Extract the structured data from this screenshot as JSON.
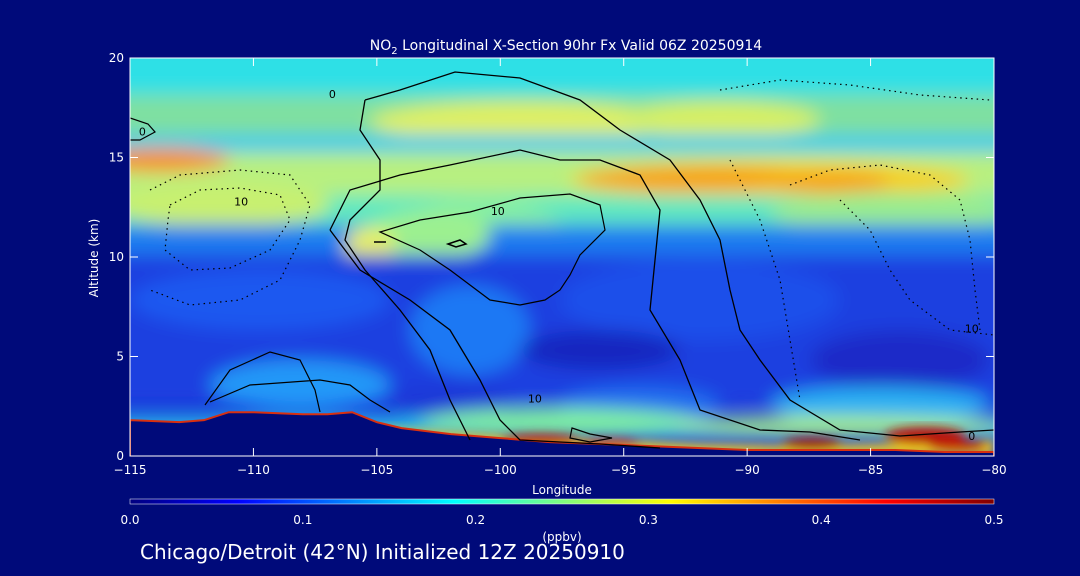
{
  "chart_data": {
    "type": "heatmap",
    "title_prefix": "NO",
    "title_subscript": "2",
    "title_rest": " Longitudinal X-Section 90hr  Fx Valid 06Z 20250914",
    "xlabel": "Longitude",
    "ylabel": "Altitude (km)",
    "xlim": [
      -115,
      -80
    ],
    "ylim": [
      0,
      20
    ],
    "x_ticks": [
      -115,
      -110,
      -105,
      -100,
      -95,
      -90,
      -85,
      -80
    ],
    "x_tick_labels": [
      "−115",
      "−110",
      "−105",
      "−100",
      "−95",
      "−90",
      "−85",
      "−80"
    ],
    "y_ticks": [
      0,
      5,
      10,
      15,
      20
    ],
    "y_tick_labels": [
      "0",
      "5",
      "10",
      "15",
      "20"
    ],
    "colorbar": {
      "label": "(ppbv)",
      "range": [
        0.0,
        0.5
      ],
      "ticks": [
        0.0,
        0.1,
        0.2,
        0.3,
        0.4,
        0.5
      ],
      "tick_labels": [
        "0.0",
        "0.1",
        "0.2",
        "0.3",
        "0.4",
        "0.5"
      ],
      "colors": [
        "#00007F",
        "#0000FF",
        "#007FFF",
        "#00FFFF",
        "#7FFF7F",
        "#FFFF00",
        "#FF7F00",
        "#FF0000",
        "#7F0000"
      ]
    },
    "terrain_km": {
      "lon": [
        -115,
        -113,
        -112,
        -111,
        -110,
        -108,
        -107,
        -106,
        -105,
        -104,
        -102,
        -100,
        -98,
        -96,
        -94,
        -92,
        -90,
        -88,
        -86,
        -84,
        -82,
        -80
      ],
      "alt": [
        1.8,
        1.7,
        1.8,
        2.2,
        2.2,
        2.1,
        2.1,
        2.2,
        1.7,
        1.4,
        1.1,
        0.9,
        0.7,
        0.6,
        0.5,
        0.4,
        0.3,
        0.3,
        0.3,
        0.3,
        0.2,
        0.2
      ]
    },
    "contour_labels": [
      {
        "text": "0",
        "lon": -106.8,
        "alt": 18.2
      },
      {
        "text": "0",
        "lon": -114.5,
        "alt": 16.3
      },
      {
        "text": "10",
        "lon": -110.5,
        "alt": 12.8
      },
      {
        "text": "10",
        "lon": -100.1,
        "alt": 12.3
      },
      {
        "text": "10",
        "lon": -98.6,
        "alt": 2.9
      },
      {
        "text": "10",
        "lon": -80.9,
        "alt": 6.4
      },
      {
        "text": "0",
        "lon": -80.9,
        "alt": 1.0
      }
    ]
  },
  "footer": "Chicago/Detroit (42°N) Initialized 12Z 20250910"
}
